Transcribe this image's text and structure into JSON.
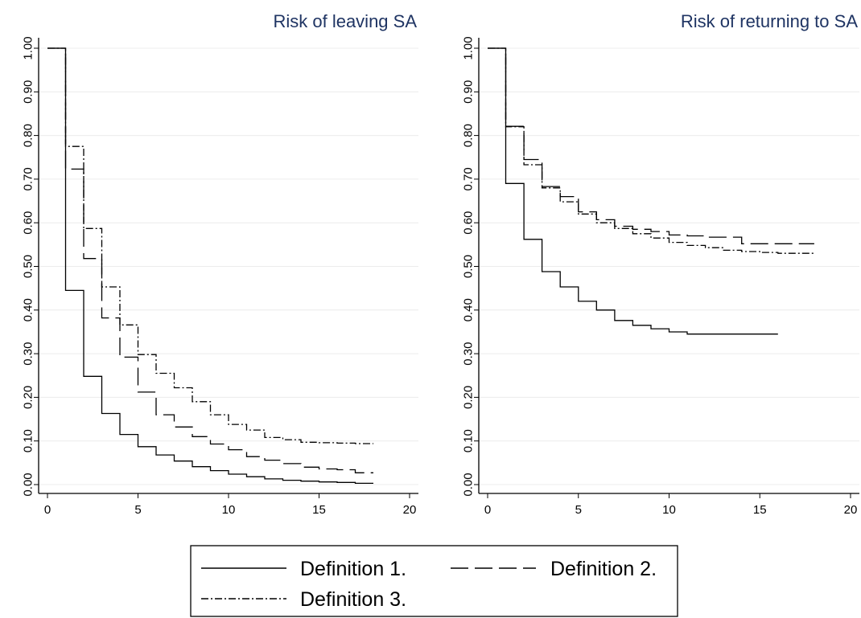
{
  "chart_data": [
    {
      "type": "line",
      "step": true,
      "title": "Risk of leaving SA",
      "xlabel": "",
      "ylabel": "",
      "xlim": [
        0,
        20
      ],
      "ylim": [
        0,
        1
      ],
      "xticks": [
        "0",
        "5",
        "10",
        "15",
        "20"
      ],
      "yticks": [
        "0.00",
        "0.10",
        "0.20",
        "0.30",
        "0.40",
        "0.50",
        "0.60",
        "0.70",
        "0.80",
        "0.90",
        "1.00"
      ],
      "grid": true,
      "series": [
        {
          "name": "Definition 1",
          "dash": "solid",
          "points": [
            [
              0,
              1.0
            ],
            [
              1,
              1.0
            ],
            [
              1,
              0.445
            ],
            [
              2,
              0.445
            ],
            [
              2,
              0.248
            ],
            [
              3,
              0.248
            ],
            [
              3,
              0.163
            ],
            [
              4,
              0.163
            ],
            [
              4,
              0.115
            ],
            [
              5,
              0.115
            ],
            [
              5,
              0.087
            ],
            [
              6,
              0.087
            ],
            [
              6,
              0.068
            ],
            [
              7,
              0.068
            ],
            [
              7,
              0.054
            ],
            [
              8,
              0.054
            ],
            [
              8,
              0.041
            ],
            [
              9,
              0.041
            ],
            [
              9,
              0.032
            ],
            [
              10,
              0.032
            ],
            [
              10,
              0.024
            ],
            [
              11,
              0.024
            ],
            [
              11,
              0.018
            ],
            [
              12,
              0.018
            ],
            [
              12,
              0.013
            ],
            [
              13,
              0.013
            ],
            [
              13,
              0.01
            ],
            [
              14,
              0.01
            ],
            [
              14,
              0.008
            ],
            [
              15,
              0.008
            ],
            [
              15,
              0.006
            ],
            [
              16,
              0.006
            ],
            [
              16,
              0.005
            ],
            [
              17,
              0.005
            ],
            [
              17,
              0.003
            ],
            [
              18,
              0.003
            ]
          ]
        },
        {
          "name": "Definition 2",
          "dash": "long",
          "points": [
            [
              0,
              1.0
            ],
            [
              1,
              1.0
            ],
            [
              1,
              0.723
            ],
            [
              2,
              0.723
            ],
            [
              2,
              0.518
            ],
            [
              3,
              0.518
            ],
            [
              3,
              0.382
            ],
            [
              4,
              0.382
            ],
            [
              4,
              0.292
            ],
            [
              5,
              0.292
            ],
            [
              5,
              0.212
            ],
            [
              6,
              0.212
            ],
            [
              6,
              0.16
            ],
            [
              7,
              0.16
            ],
            [
              7,
              0.132
            ],
            [
              8,
              0.132
            ],
            [
              8,
              0.11
            ],
            [
              9,
              0.11
            ],
            [
              9,
              0.093
            ],
            [
              10,
              0.093
            ],
            [
              10,
              0.08
            ],
            [
              11,
              0.08
            ],
            [
              11,
              0.064
            ],
            [
              12,
              0.064
            ],
            [
              12,
              0.056
            ],
            [
              13,
              0.056
            ],
            [
              13,
              0.048
            ],
            [
              14,
              0.048
            ],
            [
              14,
              0.04
            ],
            [
              15,
              0.04
            ],
            [
              15,
              0.036
            ],
            [
              16,
              0.036
            ],
            [
              16,
              0.034
            ],
            [
              17,
              0.034
            ],
            [
              17,
              0.027
            ],
            [
              18,
              0.027
            ]
          ]
        },
        {
          "name": "Definition 3",
          "dash": "dashdot",
          "points": [
            [
              0,
              1.0
            ],
            [
              1,
              1.0
            ],
            [
              1,
              0.775
            ],
            [
              2,
              0.775
            ],
            [
              2,
              0.587
            ],
            [
              3,
              0.587
            ],
            [
              3,
              0.453
            ],
            [
              4,
              0.453
            ],
            [
              4,
              0.366
            ],
            [
              5,
              0.366
            ],
            [
              5,
              0.298
            ],
            [
              6,
              0.298
            ],
            [
              6,
              0.255
            ],
            [
              7,
              0.255
            ],
            [
              7,
              0.222
            ],
            [
              8,
              0.222
            ],
            [
              8,
              0.19
            ],
            [
              9,
              0.19
            ],
            [
              9,
              0.16
            ],
            [
              10,
              0.16
            ],
            [
              10,
              0.138
            ],
            [
              11,
              0.138
            ],
            [
              11,
              0.125
            ],
            [
              12,
              0.125
            ],
            [
              12,
              0.108
            ],
            [
              13,
              0.108
            ],
            [
              13,
              0.103
            ],
            [
              14,
              0.103
            ],
            [
              14,
              0.097
            ],
            [
              15,
              0.097
            ],
            [
              15,
              0.096
            ],
            [
              16,
              0.096
            ],
            [
              16,
              0.095
            ],
            [
              17,
              0.095
            ],
            [
              17,
              0.094
            ],
            [
              18,
              0.094
            ]
          ]
        }
      ]
    },
    {
      "type": "line",
      "step": true,
      "title": "Risk of returning to SA",
      "xlabel": "",
      "ylabel": "",
      "xlim": [
        0,
        20
      ],
      "ylim": [
        0,
        1
      ],
      "xticks": [
        "0",
        "5",
        "10",
        "15",
        "20"
      ],
      "yticks": [
        "0.00",
        "0.10",
        "0.20",
        "0.30",
        "0.40",
        "0.50",
        "0.60",
        "0.70",
        "0.80",
        "0.90",
        "1.00"
      ],
      "grid": true,
      "series": [
        {
          "name": "Definition 1",
          "dash": "solid",
          "points": [
            [
              0,
              1.0
            ],
            [
              1,
              1.0
            ],
            [
              1,
              0.69
            ],
            [
              2,
              0.69
            ],
            [
              2,
              0.562
            ],
            [
              3,
              0.562
            ],
            [
              3,
              0.488
            ],
            [
              4,
              0.488
            ],
            [
              4,
              0.453
            ],
            [
              5,
              0.453
            ],
            [
              5,
              0.42
            ],
            [
              6,
              0.42
            ],
            [
              6,
              0.4
            ],
            [
              7,
              0.4
            ],
            [
              7,
              0.376
            ],
            [
              8,
              0.376
            ],
            [
              8,
              0.365
            ],
            [
              9,
              0.365
            ],
            [
              9,
              0.357
            ],
            [
              10,
              0.357
            ],
            [
              10,
              0.35
            ],
            [
              11,
              0.35
            ],
            [
              11,
              0.345
            ],
            [
              16,
              0.345
            ]
          ]
        },
        {
          "name": "Definition 2",
          "dash": "long",
          "points": [
            [
              0,
              1.0
            ],
            [
              1,
              1.0
            ],
            [
              1,
              0.821
            ],
            [
              2,
              0.821
            ],
            [
              2,
              0.745
            ],
            [
              3,
              0.745
            ],
            [
              3,
              0.683
            ],
            [
              4,
              0.683
            ],
            [
              4,
              0.66
            ],
            [
              5,
              0.66
            ],
            [
              5,
              0.625
            ],
            [
              6,
              0.625
            ],
            [
              6,
              0.607
            ],
            [
              7,
              0.607
            ],
            [
              7,
              0.592
            ],
            [
              8,
              0.592
            ],
            [
              8,
              0.585
            ],
            [
              9,
              0.585
            ],
            [
              9,
              0.58
            ],
            [
              10,
              0.58
            ],
            [
              10,
              0.572
            ],
            [
              11,
              0.572
            ],
            [
              11,
              0.57
            ],
            [
              12,
              0.57
            ],
            [
              12,
              0.567
            ],
            [
              14,
              0.567
            ],
            [
              14,
              0.552
            ],
            [
              18,
              0.552
            ]
          ]
        },
        {
          "name": "Definition 3",
          "dash": "dashdot",
          "points": [
            [
              0,
              1.0
            ],
            [
              1,
              1.0
            ],
            [
              1,
              0.82
            ],
            [
              2,
              0.82
            ],
            [
              2,
              0.733
            ],
            [
              3,
              0.733
            ],
            [
              3,
              0.68
            ],
            [
              4,
              0.68
            ],
            [
              4,
              0.648
            ],
            [
              5,
              0.648
            ],
            [
              5,
              0.62
            ],
            [
              6,
              0.62
            ],
            [
              6,
              0.6
            ],
            [
              7,
              0.6
            ],
            [
              7,
              0.587
            ],
            [
              8,
              0.587
            ],
            [
              8,
              0.575
            ],
            [
              9,
              0.575
            ],
            [
              9,
              0.565
            ],
            [
              10,
              0.565
            ],
            [
              10,
              0.555
            ],
            [
              11,
              0.555
            ],
            [
              11,
              0.548
            ],
            [
              12,
              0.548
            ],
            [
              12,
              0.543
            ],
            [
              13,
              0.543
            ],
            [
              13,
              0.537
            ],
            [
              14,
              0.537
            ],
            [
              14,
              0.534
            ],
            [
              15,
              0.534
            ],
            [
              15,
              0.532
            ],
            [
              16,
              0.532
            ],
            [
              16,
              0.53
            ],
            [
              18,
              0.53
            ]
          ]
        }
      ]
    }
  ],
  "legend": {
    "placement": "bottom",
    "entries": [
      {
        "label": "Definition 1.",
        "dash": "solid"
      },
      {
        "label": "Definition 2.",
        "dash": "long"
      },
      {
        "label": "Definition 3.",
        "dash": "dashdot"
      }
    ]
  }
}
